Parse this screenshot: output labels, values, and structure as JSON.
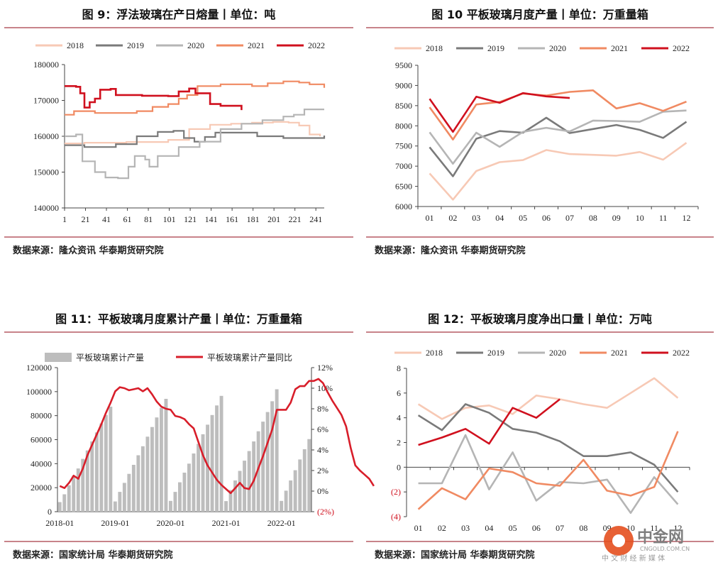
{
  "colors": {
    "2018": "#f7c9b5",
    "2019": "#7a7a7a",
    "2020": "#b5b5b5",
    "2021": "#f08a62",
    "2022": "#d0101e",
    "bar": "#bdbdbd",
    "cum_line": "#d81e2a",
    "rule": "#c8838a"
  },
  "watermark": {
    "cn": "中金网",
    "en": "CNGOLD.COM.CN",
    "sub": "中 文 财 经 新 媒 体"
  },
  "chart_data": [
    {
      "type": "line",
      "title": "图 9：浮法玻璃在产日熔量丨单位：吨",
      "source": "数据来源：隆众资讯  华泰期货研究院",
      "legend": [
        "2018",
        "2019",
        "2020",
        "2021",
        "2022"
      ],
      "x_ticks": [
        "1",
        "21",
        "41",
        "61",
        "81",
        "101",
        "121",
        "141",
        "161",
        "181",
        "201",
        "221",
        "241"
      ],
      "xlim": [
        1,
        249
      ],
      "y_ticks": [
        "140000",
        "150000",
        "160000",
        "170000",
        "180000"
      ],
      "ylim": [
        140000,
        180000
      ],
      "series": [
        {
          "name": "2018",
          "points": [
            [
              1,
              158000
            ],
            [
              20,
              158200
            ],
            [
              60,
              158400
            ],
            [
              100,
              159000
            ],
            [
              120,
              162000
            ],
            [
              140,
              163200
            ],
            [
              160,
              163500
            ],
            [
              180,
              163800
            ],
            [
              200,
              164000
            ],
            [
              215,
              163800
            ],
            [
              225,
              163000
            ],
            [
              235,
              160500
            ],
            [
              245,
              160000
            ]
          ]
        },
        {
          "name": "2019",
          "points": [
            [
              1,
              157500
            ],
            [
              20,
              157000
            ],
            [
              50,
              157800
            ],
            [
              70,
              160000
            ],
            [
              90,
              161200
            ],
            [
              105,
              161500
            ],
            [
              115,
              159500
            ],
            [
              125,
              158500
            ],
            [
              135,
              159800
            ],
            [
              145,
              161000
            ],
            [
              165,
              161000
            ],
            [
              185,
              160000
            ],
            [
              210,
              159500
            ],
            [
              230,
              159500
            ],
            [
              249,
              160200
            ]
          ]
        },
        {
          "name": "2020",
          "points": [
            [
              1,
              160000
            ],
            [
              12,
              160500
            ],
            [
              18,
              153000
            ],
            [
              30,
              150000
            ],
            [
              40,
              148500
            ],
            [
              52,
              148300
            ],
            [
              62,
              151500
            ],
            [
              68,
              154500
            ],
            [
              78,
              153500
            ],
            [
              82,
              151500
            ],
            [
              90,
              154500
            ],
            [
              110,
              157000
            ],
            [
              130,
              158500
            ],
            [
              150,
              162000
            ],
            [
              170,
              163500
            ],
            [
              190,
              164500
            ],
            [
              210,
              165500
            ],
            [
              220,
              166000
            ],
            [
              230,
              167500
            ],
            [
              249,
              167500
            ]
          ]
        },
        {
          "name": "2021",
          "points": [
            [
              1,
              166000
            ],
            [
              10,
              167000
            ],
            [
              30,
              166500
            ],
            [
              50,
              166500
            ],
            [
              70,
              167000
            ],
            [
              85,
              168200
            ],
            [
              100,
              169000
            ],
            [
              110,
              170500
            ],
            [
              118,
              171500
            ],
            [
              128,
              174000
            ],
            [
              150,
              174500
            ],
            [
              170,
              174500
            ],
            [
              180,
              174000
            ],
            [
              195,
              174800
            ],
            [
              210,
              175300
            ],
            [
              225,
              175000
            ],
            [
              235,
              174500
            ],
            [
              249,
              173500
            ]
          ]
        },
        {
          "name": "2022",
          "points": [
            [
              1,
              174000
            ],
            [
              12,
              173800
            ],
            [
              16,
              172000
            ],
            [
              20,
              168000
            ],
            [
              25,
              169500
            ],
            [
              30,
              170500
            ],
            [
              35,
              173000
            ],
            [
              45,
              173200
            ],
            [
              50,
              171500
            ],
            [
              60,
              171500
            ],
            [
              75,
              171300
            ],
            [
              100,
              171200
            ],
            [
              110,
              172500
            ],
            [
              120,
              173300
            ],
            [
              126,
              172000
            ],
            [
              140,
              169000
            ],
            [
              150,
              168500
            ],
            [
              160,
              168500
            ],
            [
              170,
              167300
            ]
          ]
        }
      ]
    },
    {
      "type": "line",
      "title": "图 10  平板玻璃月度产量丨单位：万重量箱",
      "source": "数据来源：隆众资讯  华泰期货研究院",
      "legend": [
        "2018",
        "2019",
        "2020",
        "2021",
        "2022"
      ],
      "categories": [
        "01",
        "02",
        "03",
        "04",
        "05",
        "06",
        "07",
        "08",
        "09",
        "10",
        "11",
        "12"
      ],
      "y_ticks": [
        "6000",
        "6500",
        "7000",
        "7500",
        "8000",
        "8500",
        "9000",
        "9500"
      ],
      "ylim": [
        6000,
        9500
      ],
      "series": [
        {
          "name": "2018",
          "values": [
            6820,
            6170,
            6880,
            7100,
            7150,
            7400,
            7300,
            7280,
            7260,
            7350,
            7160,
            7580
          ]
        },
        {
          "name": "2019",
          "values": [
            7470,
            6750,
            7680,
            7870,
            7830,
            8200,
            7820,
            7920,
            8020,
            7900,
            7700,
            8100
          ]
        },
        {
          "name": "2020",
          "values": [
            7840,
            7060,
            7830,
            7480,
            7850,
            7950,
            7860,
            8130,
            8120,
            8100,
            8350,
            8380
          ]
        },
        {
          "name": "2021",
          "values": [
            8460,
            7660,
            8530,
            8590,
            8800,
            8750,
            8840,
            8880,
            8430,
            8560,
            8370,
            8600
          ]
        },
        {
          "name": "2022",
          "values": [
            8670,
            7850,
            8720,
            8570,
            8810,
            8730,
            8690,
            null,
            null,
            null,
            null,
            null
          ]
        }
      ]
    },
    {
      "type": "bar",
      "title": "图 11：平板玻璃月度累计产量丨单位：万重量箱",
      "source": "数据来源：国家统计局  华泰期货研究院",
      "legend": [
        "平板玻璃累计产量",
        "平板玻璃累计产量同比"
      ],
      "x_ticks": [
        "2018-01",
        "2019-01",
        "2020-01",
        "2021-01",
        "2022-01"
      ],
      "y_ticks": [
        "0",
        "20000",
        "40000",
        "60000",
        "80000",
        "100000",
        "120000"
      ],
      "ylim": [
        0,
        120000
      ],
      "y2_ticks": [
        "(2%)",
        "0%",
        "2%",
        "4%",
        "6%",
        "8%",
        "10%",
        "12%"
      ],
      "y2lim": [
        -2,
        12
      ],
      "bars": [
        [
          8000,
          14500,
          22000,
          30000,
          36000,
          44000,
          51000,
          58500,
          66000,
          73500,
          80500,
          87500
        ],
        [
          8500,
          16500,
          24000,
          31500,
          39000,
          47000,
          54500,
          62500,
          70500,
          78500,
          86500,
          94000
        ],
        [
          9000,
          16500,
          24500,
          32500,
          40000,
          48500,
          56500,
          64500,
          72500,
          80500,
          88500,
          96500
        ],
        [
          8800,
          18000,
          26000,
          34000,
          42500,
          50500,
          58500,
          67000,
          75000,
          83000,
          92000,
          102000
        ],
        [
          9000,
          17500,
          26000,
          34500,
          43500,
          52000,
          60500
        ]
      ],
      "yoy": [
        0.5,
        0.3,
        0.8,
        1.5,
        1.2,
        2.2,
        3.5,
        4.5,
        5.5,
        6.5,
        7.6,
        8.6,
        9.7,
        10.1,
        10.0,
        9.8,
        9.9,
        10.0,
        9.7,
        10.0,
        9.4,
        8.7,
        8.2,
        8.0,
        7.9,
        7.3,
        7.2,
        7.0,
        6.5,
        6.1,
        4.8,
        3.5,
        2.5,
        1.8,
        1.1,
        0.6,
        0.2,
        -0.2,
        0.3,
        0.8,
        0.3,
        0.2,
        1.0,
        2.2,
        3.4,
        4.7,
        6.0,
        7.9,
        7.9,
        7.9,
        8.6,
        9.9,
        10.2,
        10.2,
        10.7,
        10.7,
        10.9,
        10.5,
        9.6,
        8.8,
        8.1,
        7.4,
        6.3,
        4.2,
        2.5,
        2.0,
        1.6,
        1.2,
        0.5
      ]
    },
    {
      "type": "line",
      "title": "图 12：平板玻璃月度净出口量丨单位：万吨",
      "source": "数据来源：国家统计局  华泰期货研究院",
      "legend": [
        "2018",
        "2019",
        "2020",
        "2021",
        "2022"
      ],
      "categories": [
        "01",
        "02",
        "03",
        "04",
        "05",
        "06",
        "07",
        "08",
        "09",
        "10",
        "11",
        "12"
      ],
      "y_ticks": [
        "(4)",
        "(2)",
        "0",
        "2",
        "4",
        "6",
        "8"
      ],
      "ylim": [
        -4,
        8
      ],
      "series": [
        {
          "name": "2018",
          "values": [
            5.1,
            3.9,
            4.8,
            5.0,
            4.3,
            5.8,
            5.5,
            5.1,
            4.8,
            6.0,
            7.2,
            5.6
          ]
        },
        {
          "name": "2019",
          "values": [
            4.2,
            3.0,
            5.1,
            4.4,
            3.1,
            2.8,
            2.1,
            0.9,
            0.9,
            1.2,
            0.2,
            -2.0
          ]
        },
        {
          "name": "2020",
          "values": [
            -1.3,
            -1.3,
            2.6,
            -1.8,
            1.2,
            -2.7,
            -1.2,
            -1.3,
            -1.0,
            -3.7,
            -0.8,
            -3.0
          ]
        },
        {
          "name": "2021",
          "values": [
            -3.4,
            -1.7,
            -2.6,
            -0.1,
            -0.4,
            -1.3,
            -1.5,
            0.6,
            -1.9,
            -2.3,
            -1.6,
            2.9
          ]
        },
        {
          "name": "2022",
          "values": [
            1.8,
            2.4,
            3.1,
            1.9,
            4.8,
            4.0,
            5.5,
            null,
            null,
            null,
            null,
            null
          ]
        }
      ]
    }
  ]
}
